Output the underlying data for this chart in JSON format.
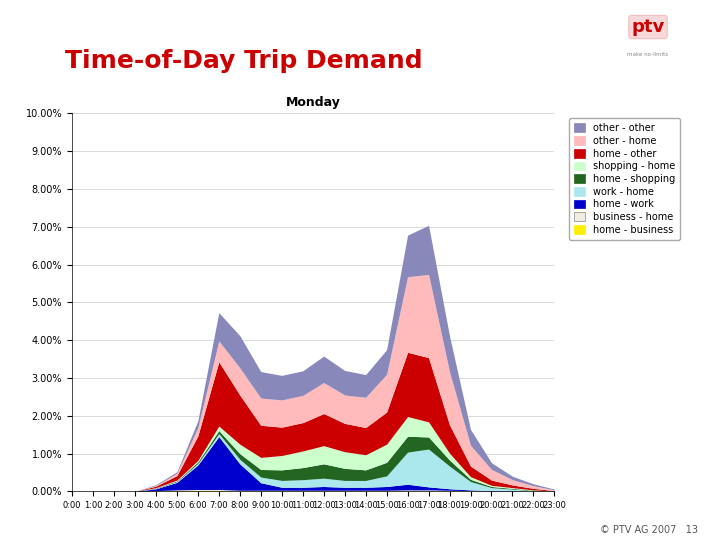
{
  "title": "Time-of-Day Trip Demand",
  "subtitle": "Monday",
  "title_color": "#cc0000",
  "background_color": "#ffffff",
  "hours": [
    "0:00",
    "1:00",
    "2:00",
    "3:00",
    "4:00",
    "5:00",
    "6:00",
    "7:00",
    "8:00",
    "9:00",
    "10:00",
    "11:00",
    "12:00",
    "13:00",
    "14:00",
    "15:00",
    "16:00",
    "17:00",
    "18:00",
    "19:00",
    "20:00",
    "21:00",
    "22:00",
    "23:00"
  ],
  "series": [
    {
      "label": "home - business",
      "color": "#ffee00",
      "data": [
        0.0,
        0.0,
        0.0,
        0.0,
        0.01,
        0.02,
        0.02,
        0.02,
        0.01,
        0.01,
        0.01,
        0.01,
        0.01,
        0.01,
        0.01,
        0.01,
        0.01,
        0.01,
        0.01,
        0.01,
        0.0,
        0.0,
        0.0,
        0.0
      ]
    },
    {
      "label": "business - home",
      "color": "#f0ede0",
      "data": [
        0.0,
        0.0,
        0.0,
        0.0,
        0.01,
        0.02,
        0.03,
        0.03,
        0.02,
        0.02,
        0.02,
        0.02,
        0.02,
        0.02,
        0.02,
        0.02,
        0.03,
        0.03,
        0.02,
        0.01,
        0.01,
        0.01,
        0.0,
        0.0
      ]
    },
    {
      "label": "home - work",
      "color": "#0000cc",
      "data": [
        0.0,
        0.0,
        0.0,
        0.0,
        0.05,
        0.2,
        0.65,
        1.4,
        0.7,
        0.2,
        0.08,
        0.08,
        0.1,
        0.08,
        0.08,
        0.1,
        0.15,
        0.08,
        0.04,
        0.02,
        0.01,
        0.01,
        0.0,
        0.0
      ]
    },
    {
      "label": "work - home",
      "color": "#aae8ee",
      "data": [
        0.0,
        0.0,
        0.0,
        0.0,
        0.01,
        0.02,
        0.04,
        0.08,
        0.12,
        0.15,
        0.18,
        0.2,
        0.22,
        0.18,
        0.18,
        0.28,
        0.85,
        1.0,
        0.6,
        0.22,
        0.08,
        0.04,
        0.02,
        0.01
      ]
    },
    {
      "label": "home - shopping",
      "color": "#226622",
      "data": [
        0.0,
        0.0,
        0.0,
        0.0,
        0.01,
        0.02,
        0.04,
        0.08,
        0.15,
        0.2,
        0.28,
        0.32,
        0.38,
        0.32,
        0.28,
        0.36,
        0.42,
        0.32,
        0.16,
        0.06,
        0.03,
        0.02,
        0.01,
        0.0
      ]
    },
    {
      "label": "shopping - home",
      "color": "#ccffcc",
      "data": [
        0.0,
        0.0,
        0.0,
        0.0,
        0.01,
        0.02,
        0.04,
        0.12,
        0.25,
        0.32,
        0.38,
        0.44,
        0.48,
        0.44,
        0.4,
        0.48,
        0.52,
        0.4,
        0.18,
        0.07,
        0.03,
        0.02,
        0.01,
        0.0
      ]
    },
    {
      "label": "home - other",
      "color": "#cc0000",
      "data": [
        0.0,
        0.0,
        0.0,
        0.0,
        0.04,
        0.12,
        0.65,
        1.7,
        1.3,
        0.85,
        0.75,
        0.75,
        0.85,
        0.75,
        0.72,
        0.85,
        1.7,
        1.7,
        0.75,
        0.28,
        0.14,
        0.07,
        0.04,
        0.01
      ]
    },
    {
      "label": "other - home",
      "color": "#ffbbbb",
      "data": [
        0.0,
        0.0,
        0.0,
        0.0,
        0.02,
        0.06,
        0.22,
        0.55,
        0.72,
        0.72,
        0.72,
        0.72,
        0.82,
        0.75,
        0.8,
        1.0,
        2.0,
        2.2,
        1.4,
        0.55,
        0.28,
        0.14,
        0.07,
        0.02
      ]
    },
    {
      "label": "other - other",
      "color": "#8888bb",
      "data": [
        0.0,
        0.0,
        0.0,
        0.0,
        0.02,
        0.04,
        0.18,
        0.75,
        0.85,
        0.7,
        0.65,
        0.65,
        0.7,
        0.65,
        0.6,
        0.65,
        1.1,
        1.3,
        0.95,
        0.42,
        0.18,
        0.09,
        0.05,
        0.02
      ]
    }
  ],
  "ylim": [
    0,
    10.0
  ],
  "yticks": [
    0.0,
    1.0,
    2.0,
    3.0,
    4.0,
    5.0,
    6.0,
    7.0,
    8.0,
    9.0,
    10.0
  ],
  "ytick_labels": [
    "0.00%",
    "1.00%",
    "2.00%",
    "3.00%",
    "4.00%",
    "5.00%",
    "6.00%",
    "7.00%",
    "8.00%",
    "9.00%",
    "10.00%"
  ],
  "footer_text": "© PTV AG 2007   13",
  "plot_area_bg": "#ffffff"
}
